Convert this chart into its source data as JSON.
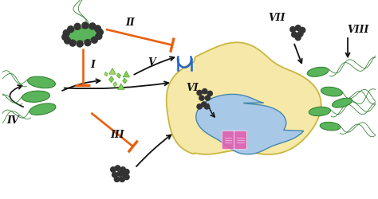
{
  "background_color": "#ffffff",
  "cell_body_color": "#f5e8a8",
  "nucleus_color": "#a8c8e8",
  "cell_edge_color": "#c8b840",
  "nucleus_edge_color": "#4488aa",
  "bacteria_body_color": "#5ab55a",
  "bacteria_outline_color": "#2a7a2a",
  "nanoparticle_color": "#333333",
  "arrow_black": "#111111",
  "arrow_orange": "#e86010",
  "label_color": "#111111",
  "figsize": [
    4.74,
    2.51
  ],
  "dpi": 100,
  "xlim": [
    0,
    10
  ],
  "ylim": [
    0,
    5.3
  ]
}
